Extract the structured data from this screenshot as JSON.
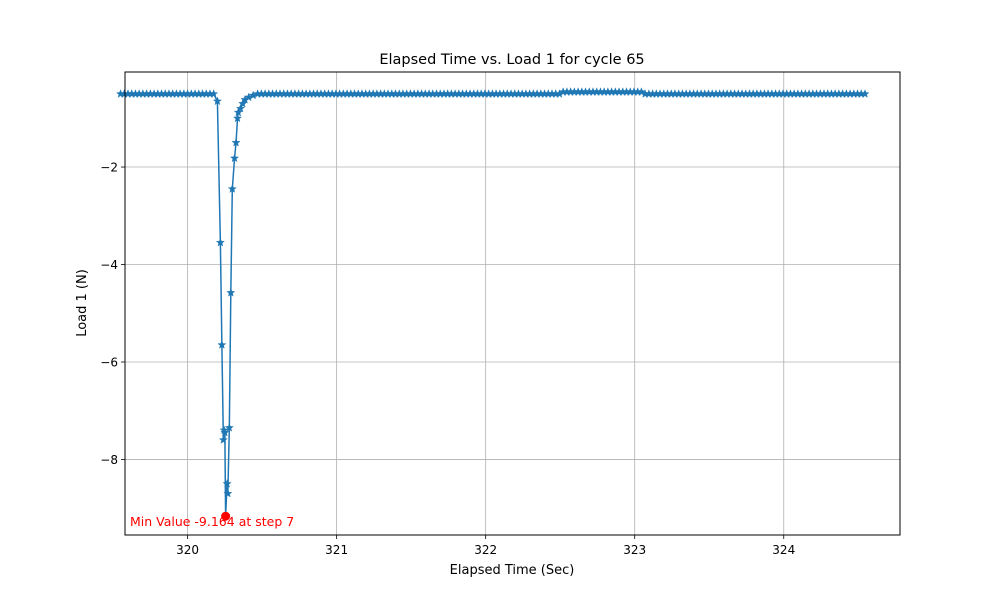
{
  "chart_data": {
    "type": "line",
    "title": "Elapsed Time vs. Load 1 for cycle 65",
    "xlabel": "Elapsed Time (Sec)",
    "ylabel": "Load 1 (N)",
    "xlim": [
      319.58,
      324.78
    ],
    "ylim": [
      -9.55,
      -0.05
    ],
    "xticks": [
      320,
      321,
      322,
      323,
      324
    ],
    "yticks": [
      -8,
      -6,
      -4,
      -2
    ],
    "xtick_labels": [
      "320",
      "321",
      "322",
      "323",
      "324"
    ],
    "ytick_labels": [
      "−8",
      "−6",
      "−4",
      "−2"
    ],
    "grid": true,
    "line_color": "#1f77b4",
    "marker": "star",
    "baseline_before": {
      "x_start": 319.55,
      "x_end": 320.2,
      "step": 0.025,
      "y": -0.5
    },
    "baseline_after": {
      "x_start": 320.47,
      "x_end": 324.55,
      "step": 0.025,
      "segments": [
        {
          "x_from": 320.47,
          "x_to": 322.5,
          "y": -0.5
        },
        {
          "x_from": 322.5,
          "x_to": 323.05,
          "y": -0.46
        },
        {
          "x_from": 323.05,
          "x_to": 324.55,
          "y": -0.5
        }
      ]
    },
    "spike_points": [
      {
        "x": 320.2,
        "y": -0.65
      },
      {
        "x": 320.22,
        "y": -3.55
      },
      {
        "x": 320.23,
        "y": -5.65
      },
      {
        "x": 320.24,
        "y": -7.6
      },
      {
        "x": 320.245,
        "y": -7.4
      },
      {
        "x": 320.25,
        "y": -7.45
      },
      {
        "x": 320.255,
        "y": -9.164
      },
      {
        "x": 320.265,
        "y": -8.5
      },
      {
        "x": 320.27,
        "y": -8.7
      },
      {
        "x": 320.28,
        "y": -7.35
      },
      {
        "x": 320.29,
        "y": -4.58
      },
      {
        "x": 320.3,
        "y": -2.45
      },
      {
        "x": 320.315,
        "y": -1.82
      },
      {
        "x": 320.325,
        "y": -1.5
      },
      {
        "x": 320.335,
        "y": -1.0
      },
      {
        "x": 320.34,
        "y": -0.88
      },
      {
        "x": 320.355,
        "y": -0.8
      },
      {
        "x": 320.37,
        "y": -0.7
      },
      {
        "x": 320.385,
        "y": -0.62
      },
      {
        "x": 320.41,
        "y": -0.57
      },
      {
        "x": 320.44,
        "y": -0.53
      }
    ],
    "min_point": {
      "x": 320.255,
      "y": -9.164,
      "color": "#ff0000"
    },
    "annotation": {
      "text": "Min Value -9.164 at step 7",
      "color": "#ff0000",
      "x": 319.6,
      "y": -9.55
    }
  }
}
